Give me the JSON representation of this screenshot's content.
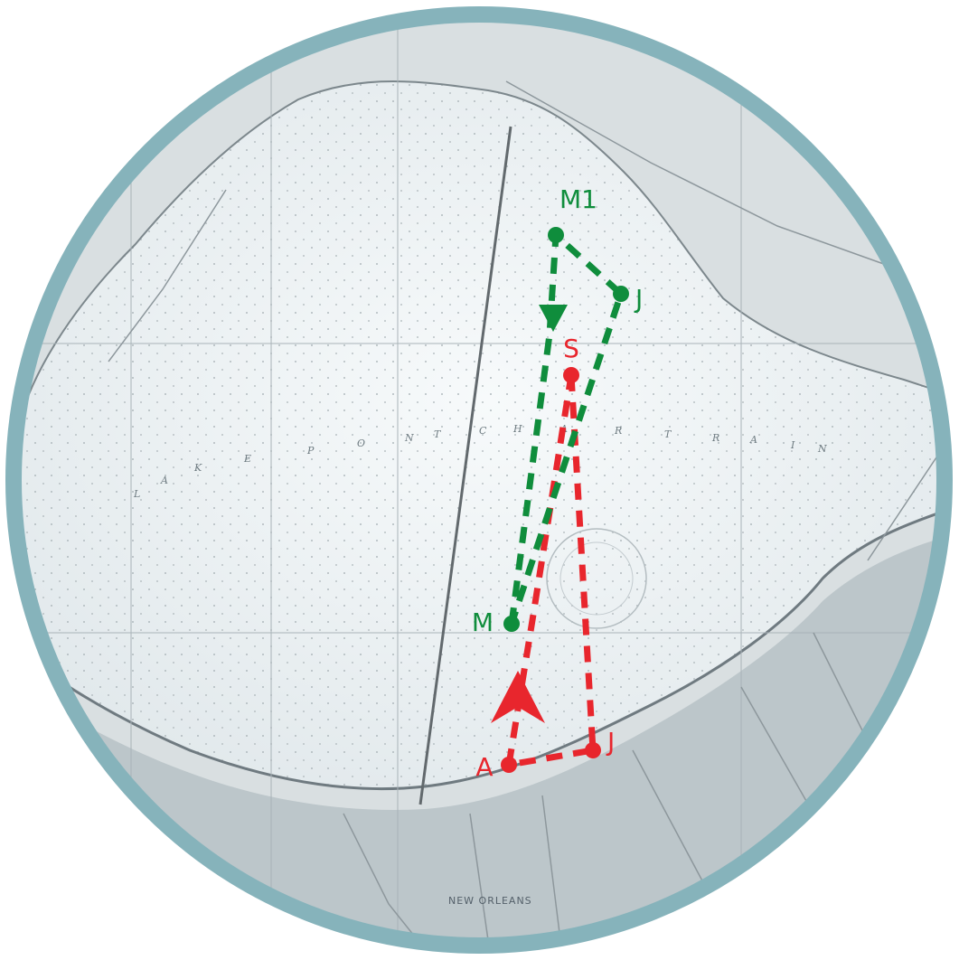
{
  "map": {
    "lake_letters": [
      "L",
      "A",
      "K",
      "E",
      "P",
      "O",
      "N",
      "T",
      "C",
      "H",
      "A",
      "R",
      "T",
      "R",
      "A",
      "I",
      "N"
    ],
    "city_label": "NEW ORLEANS",
    "colors": {
      "frame": "#86b3bb",
      "water": "#eef3f5",
      "land": "#d9dfe1",
      "south_shore_band": "#bcc6ca",
      "green_route": "#0f8d3c",
      "red_route": "#e8262d"
    }
  },
  "routes": {
    "green": {
      "marks": [
        {
          "label": "M1"
        },
        {
          "label": "J"
        },
        {
          "label": "M"
        }
      ]
    },
    "red": {
      "marks": [
        {
          "label": "S"
        },
        {
          "label": "J"
        },
        {
          "label": "A"
        }
      ]
    }
  }
}
